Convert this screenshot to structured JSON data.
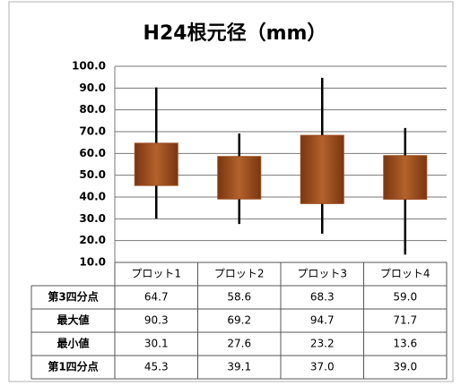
{
  "chart_data": {
    "type": "box",
    "title": "H24根元径（mm）",
    "categories": [
      "プロット1",
      "プロット2",
      "プロット3",
      "プロット4"
    ],
    "series": [
      {
        "name": "第3四分点",
        "values": [
          64.7,
          58.6,
          68.3,
          59.0
        ],
        "value_labels": [
          "64.7",
          "58.6",
          "68.3",
          "59.0"
        ]
      },
      {
        "name": "最大値",
        "values": [
          90.3,
          69.2,
          94.7,
          71.7
        ],
        "value_labels": [
          "90.3",
          "69.2",
          "94.7",
          "71.7"
        ]
      },
      {
        "name": "最小値",
        "values": [
          30.1,
          27.6,
          23.2,
          13.6
        ],
        "value_labels": [
          "30.1",
          "27.6",
          "23.2",
          "13.6"
        ]
      },
      {
        "name": "第1四分点",
        "values": [
          45.3,
          39.1,
          37.0,
          39.0
        ],
        "value_labels": [
          "45.3",
          "39.1",
          "37.0",
          "39.0"
        ]
      }
    ],
    "color": "#9a4a1c",
    "ylim": [
      10,
      100
    ],
    "yticks": [
      {
        "value": 10,
        "label": "10.0"
      },
      {
        "value": 20,
        "label": "20.0"
      },
      {
        "value": 30,
        "label": "30.0"
      },
      {
        "value": 40,
        "label": "40.0"
      },
      {
        "value": 50,
        "label": "50.0"
      },
      {
        "value": 60,
        "label": "60.0"
      },
      {
        "value": 70,
        "label": "70.0"
      },
      {
        "value": 80,
        "label": "80.0"
      },
      {
        "value": 90,
        "label": "90.0"
      },
      {
        "value": 100,
        "label": "100.0"
      }
    ],
    "grid": true
  }
}
